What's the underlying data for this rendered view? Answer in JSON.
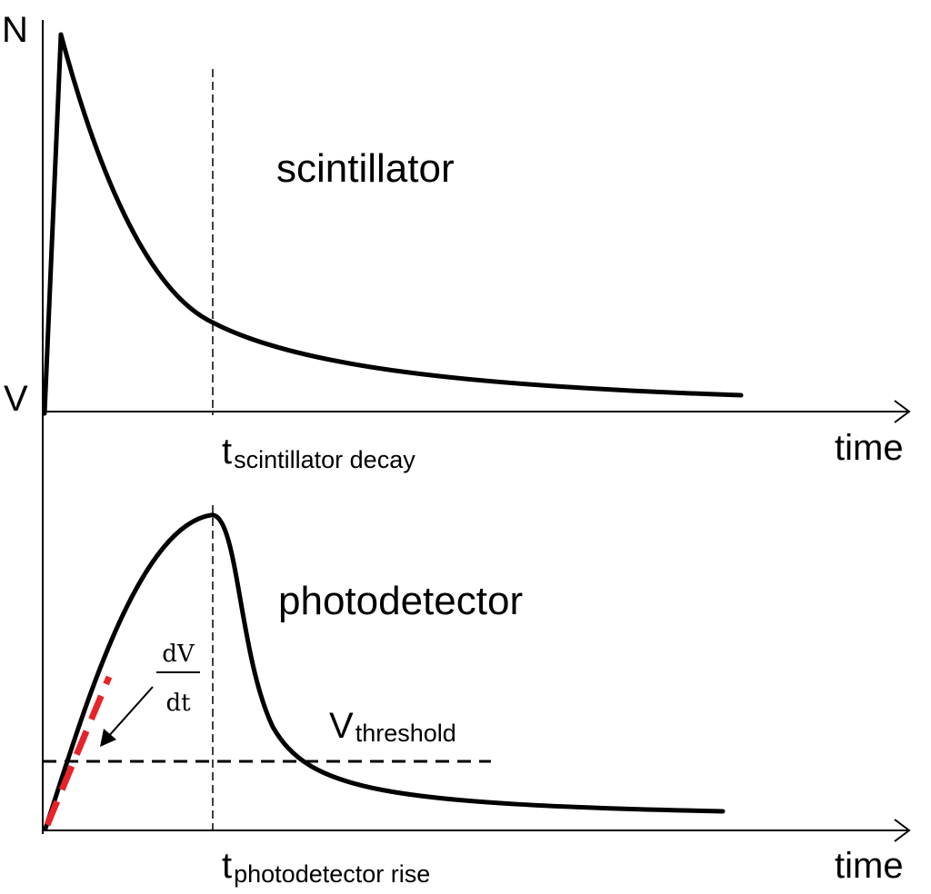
{
  "top_panel": {
    "y_axis_label": "N",
    "x_axis_label": "time",
    "curve_label": "scintillator",
    "marker_label": {
      "main": "t",
      "subscript": "scintillator decay"
    }
  },
  "bottom_panel": {
    "y_axis_label": "V",
    "x_axis_label": "time",
    "curve_label": "photodetector",
    "marker_label": {
      "main": "t",
      "subscript": "photodetector rise"
    },
    "threshold_label": {
      "main": "V",
      "subscript": "threshold"
    },
    "slope_label": {
      "numerator": "dV",
      "denominator": "dt"
    }
  },
  "colors": {
    "curve": "#000000",
    "slope_highlight": "#e8232a"
  }
}
